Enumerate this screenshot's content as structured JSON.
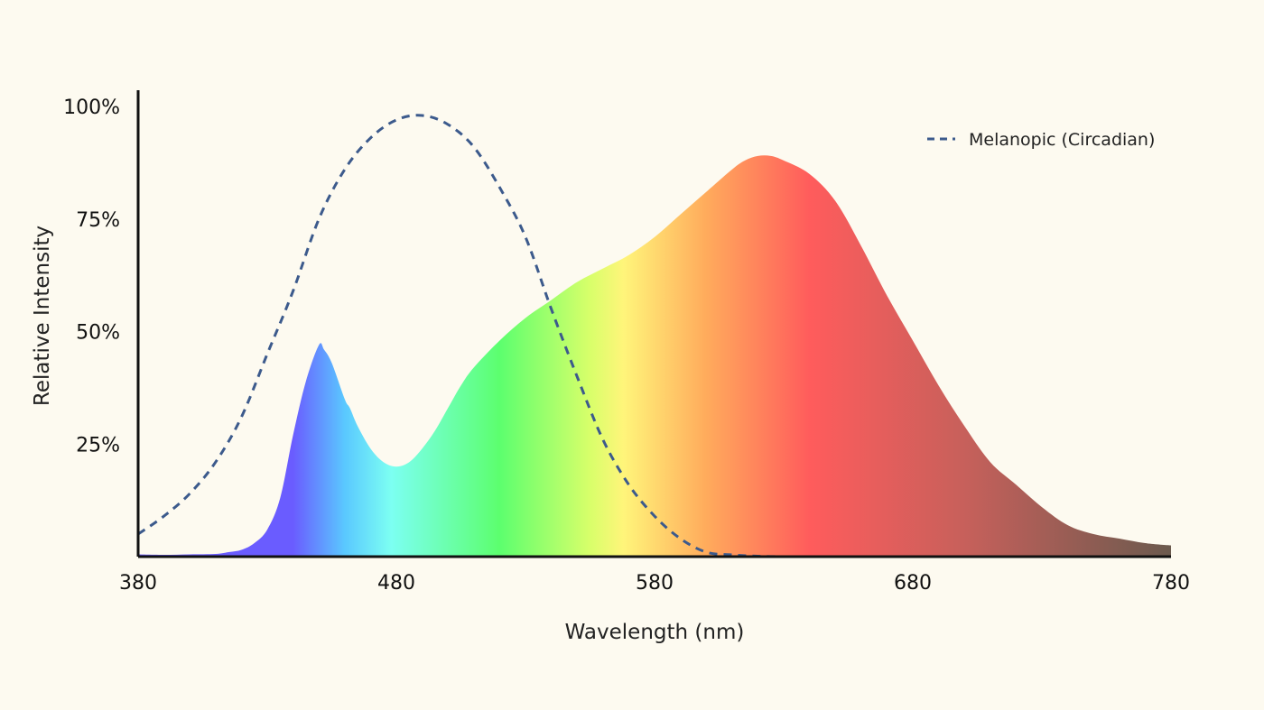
{
  "chart_data": {
    "type": "area",
    "xlabel": "Wavelength (nm)",
    "ylabel": "Relative Intensity",
    "xlim": [
      380,
      780
    ],
    "ylim": [
      0,
      1
    ],
    "x_ticks": [
      {
        "value": 380,
        "label": "380"
      },
      {
        "value": 480,
        "label": "480"
      },
      {
        "value": 580,
        "label": "580"
      },
      {
        "value": 680,
        "label": "680"
      },
      {
        "value": 780,
        "label": "780"
      }
    ],
    "y_ticks": [
      {
        "value": 0.25,
        "label": "25%"
      },
      {
        "value": 0.5,
        "label": "50%"
      },
      {
        "value": 0.75,
        "label": "75%"
      },
      {
        "value": 1.0,
        "label": "100%"
      }
    ],
    "legend_position": "top-right",
    "series": [
      {
        "style": "spectral-gradient-area",
        "x": [
          380,
          390,
          400,
          410,
          415,
          420,
          425,
          430,
          435,
          440,
          445,
          450,
          452,
          455,
          460,
          462,
          465,
          470,
          475,
          480,
          485,
          490,
          495,
          500,
          505,
          510,
          520,
          530,
          540,
          550,
          560,
          570,
          580,
          590,
          600,
          610,
          615,
          620,
          625,
          630,
          640,
          650,
          660,
          670,
          680,
          690,
          700,
          710,
          720,
          730,
          740,
          750,
          760,
          770,
          780
        ],
        "y": [
          0.005,
          0.004,
          0.005,
          0.006,
          0.01,
          0.015,
          0.03,
          0.06,
          0.13,
          0.27,
          0.39,
          0.47,
          0.46,
          0.43,
          0.35,
          0.33,
          0.29,
          0.24,
          0.21,
          0.2,
          0.21,
          0.24,
          0.28,
          0.33,
          0.38,
          0.42,
          0.48,
          0.53,
          0.57,
          0.61,
          0.64,
          0.67,
          0.71,
          0.76,
          0.81,
          0.86,
          0.88,
          0.89,
          0.89,
          0.88,
          0.85,
          0.79,
          0.69,
          0.58,
          0.48,
          0.38,
          0.29,
          0.21,
          0.16,
          0.11,
          0.07,
          0.05,
          0.04,
          0.03,
          0.025
        ]
      },
      {
        "name": "Melanopic (Circadian)",
        "style": "dashed-line",
        "color": "#3c5a8c",
        "x": [
          380,
          390,
          400,
          410,
          420,
          430,
          440,
          450,
          460,
          470,
          480,
          490,
          500,
          510,
          520,
          530,
          540,
          550,
          560,
          570,
          580,
          590,
          600,
          610,
          620,
          630,
          640
        ],
        "y": [
          0.05,
          0.09,
          0.14,
          0.21,
          0.31,
          0.45,
          0.59,
          0.75,
          0.86,
          0.93,
          0.97,
          0.98,
          0.96,
          0.91,
          0.82,
          0.71,
          0.55,
          0.4,
          0.26,
          0.16,
          0.09,
          0.04,
          0.01,
          0.004,
          0.001,
          0,
          0
        ]
      }
    ]
  },
  "colors": {
    "background": "#fdfaf0",
    "axis": "#111111",
    "spectrum_stops": [
      {
        "wavelength": 440,
        "color": "#6a5cff"
      },
      {
        "wavelength": 460,
        "color": "#5ac8ff"
      },
      {
        "wavelength": 478,
        "color": "#7cfff2"
      },
      {
        "wavelength": 520,
        "color": "#5cff6e"
      },
      {
        "wavelength": 555,
        "color": "#d8ff6a"
      },
      {
        "wavelength": 568,
        "color": "#fff57a"
      },
      {
        "wavelength": 600,
        "color": "#ffab5c"
      },
      {
        "wavelength": 640,
        "color": "#ff5c5c"
      },
      {
        "wavelength": 700,
        "color": "#c7605b"
      },
      {
        "wavelength": 780,
        "color": "#6b5a4e"
      }
    ]
  }
}
